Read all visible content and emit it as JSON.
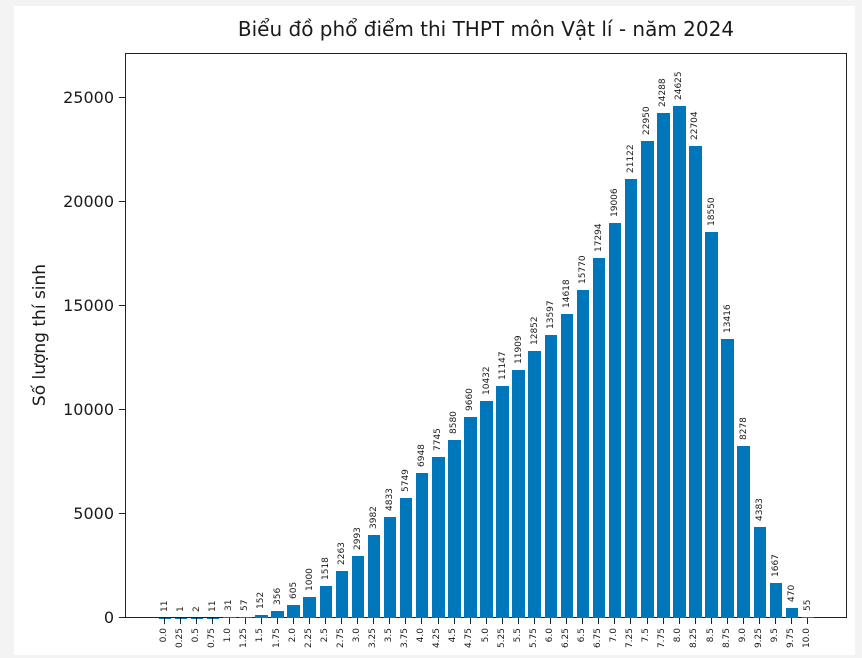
{
  "chart_data": {
    "type": "bar",
    "title": "Biểu đồ phổ điểm thi THPT môn Vật lí - năm 2024",
    "xlabel": "",
    "ylabel": "Số lượng thí sinh",
    "ylim": [
      0,
      27200
    ],
    "yticks": [
      0,
      5000,
      10000,
      15000,
      20000,
      25000
    ],
    "grid": false,
    "legend": null,
    "bar_color": "#0077bb",
    "categories": [
      "0.0",
      "0.25",
      "0.5",
      "0.75",
      "1.0",
      "1.25",
      "1.5",
      "1.75",
      "2.0",
      "2.25",
      "2.5",
      "2.75",
      "3.0",
      "3.25",
      "3.5",
      "3.75",
      "4.0",
      "4.25",
      "4.5",
      "4.75",
      "5.0",
      "5.25",
      "5.5",
      "5.75",
      "6.0",
      "6.25",
      "6.5",
      "6.75",
      "7.0",
      "7.25",
      "7.5",
      "7.75",
      "8.0",
      "8.25",
      "8.5",
      "8.75",
      "9.0",
      "9.25",
      "9.5",
      "9.75",
      "10.0"
    ],
    "values": [
      11,
      1,
      2,
      11,
      31,
      57,
      152,
      356,
      605,
      1000,
      1518,
      2263,
      2993,
      3982,
      4833,
      5749,
      6948,
      7745,
      8580,
      9660,
      10432,
      11147,
      11909,
      12852,
      13597,
      14618,
      15770,
      17294,
      19006,
      21122,
      22950,
      24288,
      24625,
      22704,
      18550,
      13416,
      8278,
      4383,
      1667,
      470,
      55
    ]
  }
}
